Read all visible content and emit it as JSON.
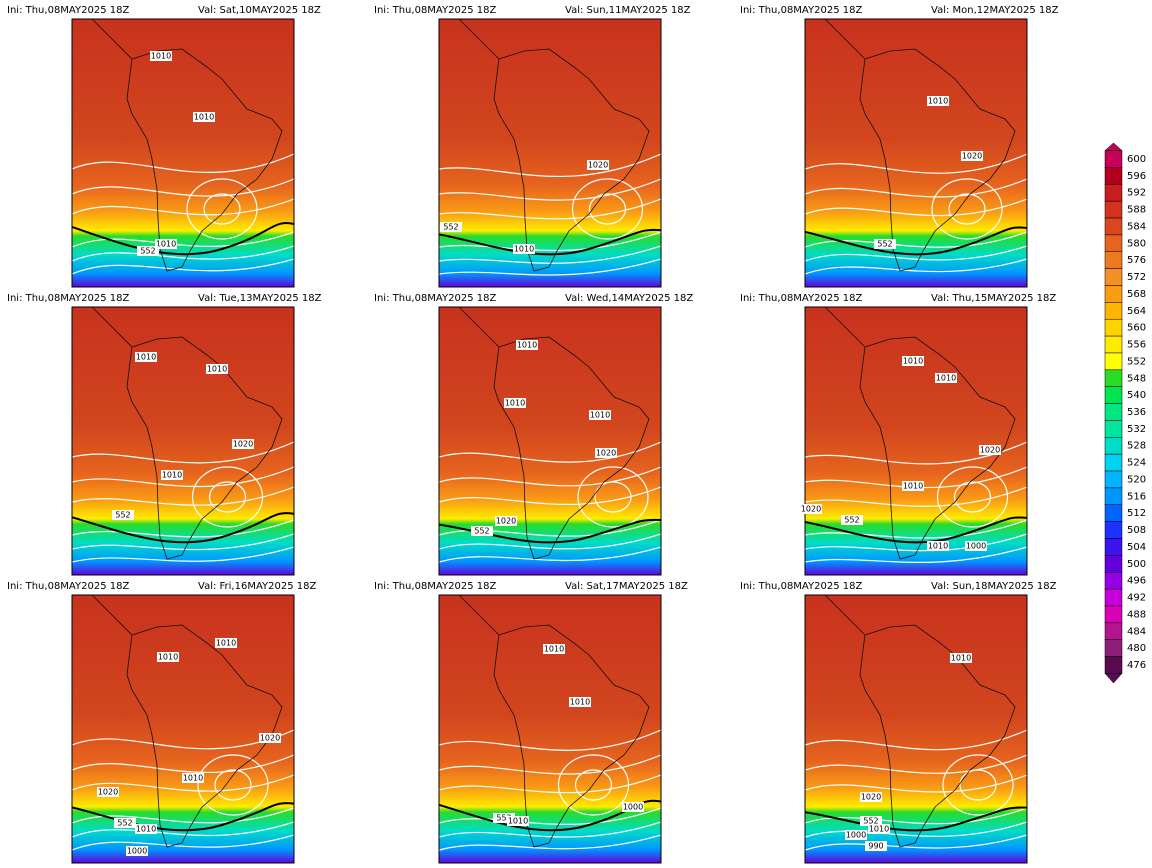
{
  "panels": [
    {
      "ini": "Ini: Thu,08MAY2025 18Z",
      "val": "Val: Sat,10MAY2025 18Z",
      "contour_labels": [
        "1010",
        "1010",
        "1010",
        "552"
      ]
    },
    {
      "ini": "Ini: Thu,08MAY2025 18Z",
      "val": "Val: Sun,11MAY2025 18Z",
      "contour_labels": [
        "1020",
        "552",
        "1010"
      ]
    },
    {
      "ini": "Ini: Thu,08MAY2025 18Z",
      "val": "Val: Mon,12MAY2025 18Z",
      "contour_labels": [
        "1010",
        "1020",
        "552"
      ]
    },
    {
      "ini": "Ini: Thu,08MAY2025 18Z",
      "val": "Val: Tue,13MAY2025 18Z",
      "contour_labels": [
        "1010",
        "1010",
        "1020",
        "1010",
        "552"
      ]
    },
    {
      "ini": "Ini: Thu,08MAY2025 18Z",
      "val": "Val: Wed,14MAY2025 18Z",
      "contour_labels": [
        "1010",
        "1010",
        "1010",
        "1020",
        "1020",
        "552"
      ]
    },
    {
      "ini": "Ini: Thu,08MAY2025 18Z",
      "val": "Val: Thu,15MAY2025 18Z",
      "contour_labels": [
        "1010",
        "1010",
        "1020",
        "1010",
        "1020",
        "552",
        "1010",
        "1000"
      ]
    },
    {
      "ini": "Ini: Thu,08MAY2025 18Z",
      "val": "Val: Fri,16MAY2025 18Z",
      "contour_labels": [
        "1010",
        "1010",
        "1020",
        "1010",
        "1020",
        "552",
        "1010",
        "1000"
      ]
    },
    {
      "ini": "Ini: Thu,08MAY2025 18Z",
      "val": "Val: Sat,17MAY2025 18Z",
      "contour_labels": [
        "1010",
        "1010",
        "1000",
        "552",
        "1010"
      ]
    },
    {
      "ini": "Ini: Thu,08MAY2025 18Z",
      "val": "Val: Sun,18MAY2025 18Z",
      "contour_labels": [
        "1010",
        "1020",
        "552",
        "1010",
        "1000",
        "990"
      ]
    }
  ],
  "colorbar": {
    "levels": [
      600,
      596,
      592,
      588,
      584,
      580,
      576,
      572,
      568,
      564,
      560,
      556,
      552,
      548,
      540,
      536,
      532,
      528,
      524,
      520,
      516,
      512,
      508,
      504,
      500,
      496,
      492,
      488,
      484,
      480,
      476
    ],
    "colors": [
      "#c8005a",
      "#b4001e",
      "#c81e1e",
      "#d2321e",
      "#dc461e",
      "#e6641e",
      "#ee7a1e",
      "#f59028",
      "#fa9b14",
      "#ffb400",
      "#ffd200",
      "#ffeb00",
      "#ffff00",
      "#28dc28",
      "#00e650",
      "#00e682",
      "#00e6a0",
      "#00dcc8",
      "#00d2f0",
      "#00b4ff",
      "#0096ff",
      "#0064ff",
      "#1e32ff",
      "#3c14f0",
      "#6400dc",
      "#9600e6",
      "#c800dc",
      "#dc00b4",
      "#b4148c",
      "#8c1e78",
      "#5a0a50"
    ]
  }
}
